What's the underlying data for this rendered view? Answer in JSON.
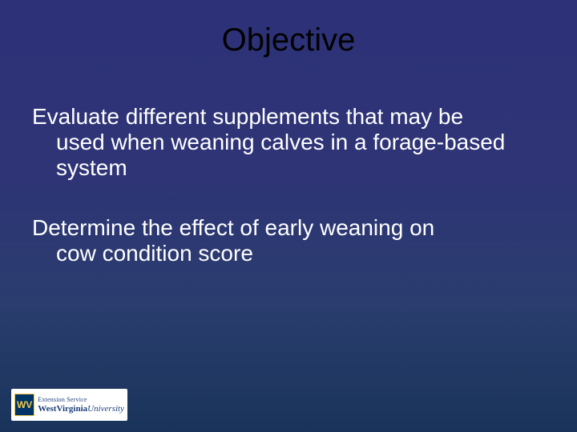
{
  "slide": {
    "background_gradient": {
      "top": "#2d3278",
      "mid": "#2a3d6e",
      "bottom": "#19345a"
    },
    "title": {
      "text": "Objective",
      "color": "#000000",
      "font_size_pt": 40
    },
    "body": {
      "text_color": "#ffffff",
      "font_size_pt": 28,
      "paragraphs": [
        {
          "first_line": "Evaluate different supplements that may be",
          "continuation": "used when weaning calves in a forage-based system"
        },
        {
          "first_line": "Determine the effect of early weaning on",
          "continuation": "cow condition score"
        }
      ]
    },
    "logo": {
      "badge_text": "WV",
      "line1": "Extension Service",
      "line2_part1": "WestVirginia",
      "line2_part2": "University",
      "badge_bg": "#003366",
      "badge_fg": "#f2c94c",
      "text_color": "#1b3e7a",
      "bg": "#ffffff"
    }
  }
}
